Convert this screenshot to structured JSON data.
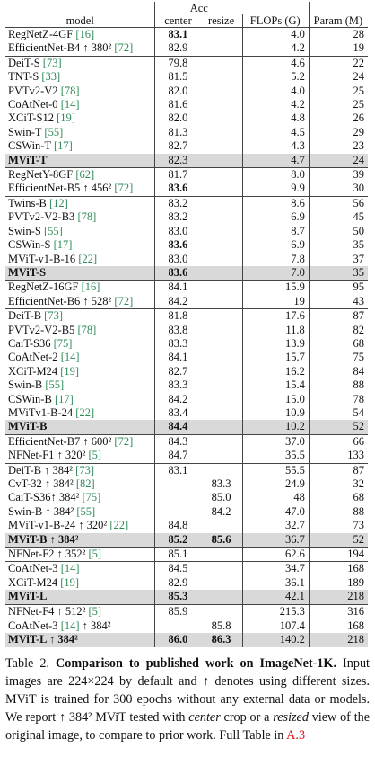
{
  "table": {
    "header": {
      "model": "model",
      "acc": "Acc",
      "center": "center",
      "resize": "resize",
      "flops": "FLOPs (G)",
      "params": "Param (M)"
    },
    "groups": [
      {
        "rows": [
          {
            "model": "RegNetZ-4GF [16]",
            "center": "83.1",
            "flops": "4.0",
            "params": "28",
            "bold": [
              "center"
            ]
          },
          {
            "model": "EfficientNet-B4 ↑ 380² [72]",
            "center": "82.9",
            "flops": "4.2",
            "params": "19"
          }
        ]
      },
      {
        "rows": [
          {
            "model": "DeiT-S [73]",
            "center": "79.8",
            "flops": "4.6",
            "params": "22"
          },
          {
            "model": "TNT-S [33]",
            "center": "81.5",
            "flops": "5.2",
            "params": "24"
          },
          {
            "model": "PVTv2-V2 [78]",
            "center": "82.0",
            "flops": "4.0",
            "params": "25"
          },
          {
            "model": "CoAtNet-0 [14]",
            "center": "81.6",
            "flops": "4.2",
            "params": "25"
          },
          {
            "model": "XCiT-S12 [19]",
            "center": "82.0",
            "flops": "4.8",
            "params": "26"
          },
          {
            "model": "Swin-T [55]",
            "center": "81.3",
            "flops": "4.5",
            "params": "29"
          },
          {
            "model": "CSWin-T [17]",
            "center": "82.7",
            "flops": "4.3",
            "params": "23"
          },
          {
            "model": "MViT-T",
            "center": "82.3",
            "flops": "4.7",
            "params": "24",
            "highlight": true
          }
        ]
      },
      {
        "rows": [
          {
            "model": "RegNetY-8GF [62]",
            "center": "81.7",
            "flops": "8.0",
            "params": "39"
          },
          {
            "model": "EfficientNet-B5 ↑ 456² [72]",
            "center": "83.6",
            "flops": "9.9",
            "params": "30",
            "bold": [
              "center"
            ]
          }
        ]
      },
      {
        "rows": [
          {
            "model": "Twins-B [12]",
            "center": "83.2",
            "flops": "8.6",
            "params": "56"
          },
          {
            "model": "PVTv2-V2-B3 [78]",
            "center": "83.2",
            "flops": "6.9",
            "params": "45"
          },
          {
            "model": "Swin-S [55]",
            "center": "83.0",
            "flops": "8.7",
            "params": "50"
          },
          {
            "model": "CSWin-S [17]",
            "center": "83.6",
            "flops": "6.9",
            "params": "35",
            "bold": [
              "center"
            ]
          },
          {
            "model": "MViT-v1-B-16 [22]",
            "center": "83.0",
            "flops": "7.8",
            "params": "37"
          },
          {
            "model": "MViT-S",
            "center": "83.6",
            "flops": "7.0",
            "params": "35",
            "highlight": true,
            "bold": [
              "center"
            ]
          }
        ]
      },
      {
        "rows": [
          {
            "model": "RegNetZ-16GF [16]",
            "center": "84.1",
            "flops": "15.9",
            "params": "95"
          },
          {
            "model": "EfficientNet-B6 ↑ 528² [72]",
            "center": "84.2",
            "flops": "19",
            "params": "43"
          }
        ]
      },
      {
        "rows": [
          {
            "model": "DeiT-B [73]",
            "center": "81.8",
            "flops": "17.6",
            "params": "87"
          },
          {
            "model": "PVTv2-V2-B5 [78]",
            "center": "83.8",
            "flops": "11.8",
            "params": "82"
          },
          {
            "model": "CaiT-S36 [75]",
            "center": "83.3",
            "flops": "13.9",
            "params": "68"
          },
          {
            "model": "CoAtNet-2 [14]",
            "center": "84.1",
            "flops": "15.7",
            "params": "75"
          },
          {
            "model": "XCiT-M24 [19]",
            "center": "82.7",
            "flops": "16.2",
            "params": "84"
          },
          {
            "model": "Swin-B [55]",
            "center": "83.3",
            "flops": "15.4",
            "params": "88"
          },
          {
            "model": "CSWin-B [17]",
            "center": "84.2",
            "flops": "15.0",
            "params": "78"
          },
          {
            "model": "MViTv1-B-24 [22]",
            "center": "83.4",
            "flops": "10.9",
            "params": "54"
          },
          {
            "model": "MViT-B",
            "center": "84.4",
            "flops": "10.2",
            "params": "52",
            "highlight": true,
            "bold": [
              "center"
            ]
          }
        ]
      },
      {
        "rows": [
          {
            "model": "EfficientNet-B7 ↑ 600² [72]",
            "center": "84.3",
            "flops": "37.0",
            "params": "66"
          },
          {
            "model": "NFNet-F1 ↑ 320² [5]",
            "center": "84.7",
            "flops": "35.5",
            "params": "133"
          }
        ]
      },
      {
        "rows": [
          {
            "model": "DeiT-B ↑ 384² [73]",
            "center": "83.1",
            "flops": "55.5",
            "params": "87"
          },
          {
            "model": "CvT-32 ↑ 384² [82]",
            "resize": "83.3",
            "flops": "24.9",
            "params": "32"
          },
          {
            "model": "CaiT-S36↑ 384² [75]",
            "resize": "85.0",
            "flops": "48",
            "params": "68"
          },
          {
            "model": "Swin-B ↑ 384² [55]",
            "resize": "84.2",
            "flops": "47.0",
            "params": "88"
          },
          {
            "model": "MViT-v1-B-24 ↑ 320² [22]",
            "center": "84.8",
            "flops": "32.7",
            "params": "73"
          },
          {
            "model": "MViT-B ↑ 384²",
            "center": "85.2",
            "resize": "85.6",
            "flops": "36.7",
            "params": "52",
            "highlight": true,
            "bold": [
              "center",
              "resize"
            ]
          }
        ]
      },
      {
        "rows": [
          {
            "model": "NFNet-F2 ↑ 352² [5]",
            "center": "85.1",
            "flops": "62.6",
            "params": "194"
          }
        ]
      },
      {
        "rows": [
          {
            "model": "CoAtNet-3 [14]",
            "center": "84.5",
            "flops": "34.7",
            "params": "168"
          },
          {
            "model": "XCiT-M24 [19]",
            "center": "82.9",
            "flops": "36.1",
            "params": "189"
          },
          {
            "model": "MViT-L",
            "center": "85.3",
            "flops": "42.1",
            "params": "218",
            "highlight": true,
            "bold": [
              "center"
            ]
          }
        ]
      },
      {
        "rows": [
          {
            "model": "NFNet-F4 ↑ 512² [5]",
            "center": "85.9",
            "flops": "215.3",
            "params": "316"
          }
        ]
      },
      {
        "rows": [
          {
            "model": "CoAtNet-3 [14] ↑ 384²",
            "resize": "85.8",
            "flops": "107.4",
            "params": "168"
          },
          {
            "model": "MViT-L ↑ 384²",
            "center": "86.0",
            "resize": "86.3",
            "flops": "140.2",
            "params": "218",
            "highlight": true,
            "bold": [
              "center",
              "resize"
            ]
          }
        ]
      }
    ]
  },
  "caption": {
    "label": "Table 2.",
    "title": "Comparison to published work on ImageNet-1K.",
    "text1": "Input images are 224×224 by default and ↑ denotes using different sizes. MViT is trained for 300 epochs without any external data or models. We report ↑ 384² MViT tested with",
    "em1": "center",
    "text2": "crop or a",
    "em2": "resized",
    "text3": "view of the original image, to compare to prior work. Full Table in",
    "link": "A.3"
  }
}
